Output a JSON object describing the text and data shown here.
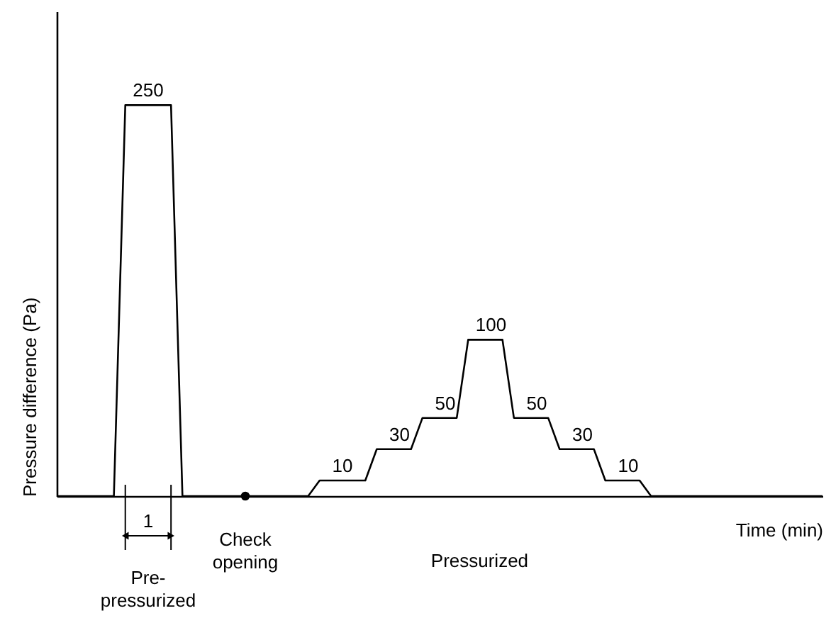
{
  "chart_data": {
    "type": "line",
    "xlabel": "Time  (min)",
    "ylabel": "Pressure difference (Pa)",
    "categories": [
      null,
      null,
      null,
      null,
      null,
      null,
      null,
      null,
      null,
      null,
      null,
      null,
      null,
      null,
      null,
      null,
      null,
      null,
      null,
      null,
      null,
      null,
      null,
      null,
      null,
      null,
      null,
      null,
      null,
      null,
      null,
      null,
      null,
      null,
      null,
      null,
      null,
      null,
      null,
      null,
      null,
      null,
      null,
      null,
      null,
      null,
      null,
      null,
      null,
      null,
      null,
      null,
      null,
      null,
      null,
      null,
      null,
      null,
      null,
      null,
      null,
      null,
      null,
      null,
      null,
      null,
      null,
      null
    ],
    "ylim": [
      0,
      310
    ],
    "tick_labels": false,
    "grid": false,
    "line_style": "solid",
    "marker": "none",
    "series": [
      {
        "color": "#000000",
        "values": [
          0,
          0,
          0,
          0,
          0,
          0,
          250,
          250,
          250,
          250,
          250,
          0,
          0,
          0,
          0,
          0,
          0,
          0,
          0,
          0,
          0,
          0,
          0,
          10,
          10,
          10,
          10,
          10,
          30,
          30,
          30,
          30,
          50,
          50,
          50,
          50,
          100,
          100,
          100,
          100,
          50,
          50,
          50,
          50,
          30,
          30,
          30,
          30,
          10,
          10,
          10,
          10,
          0,
          0,
          0,
          0,
          0,
          0,
          0,
          0,
          0,
          0,
          0,
          0,
          0,
          0,
          0,
          0
        ],
        "value_labels": [
          null,
          null,
          null,
          null,
          null,
          null,
          null,
          null,
          "250",
          null,
          null,
          null,
          null,
          null,
          null,
          null,
          null,
          null,
          null,
          null,
          null,
          null,
          null,
          null,
          null,
          "10",
          null,
          null,
          null,
          null,
          "30",
          null,
          null,
          null,
          "50",
          null,
          null,
          null,
          "100",
          null,
          null,
          null,
          "50",
          null,
          null,
          null,
          "30",
          null,
          null,
          null,
          "10",
          null,
          null,
          null,
          null,
          null,
          null,
          null,
          null,
          null,
          null,
          null,
          null,
          null,
          null,
          null,
          null,
          null
        ]
      }
    ],
    "annotations": [
      "1",
      {
        "text": "Check opening",
        "y": 0
      },
      "Pre-pressurized",
      "Pressurized"
    ]
  }
}
